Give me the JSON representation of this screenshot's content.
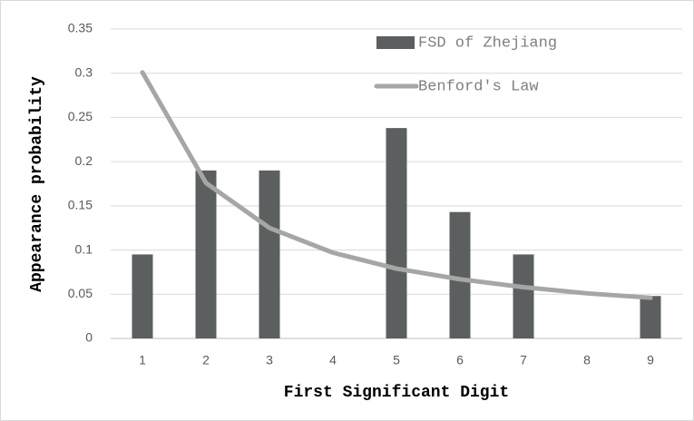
{
  "chart_data": {
    "type": "bar",
    "categories": [
      "1",
      "2",
      "3",
      "4",
      "5",
      "6",
      "7",
      "8",
      "9"
    ],
    "series": [
      {
        "name": "FSD of Zhejiang",
        "type": "bar",
        "color": "#5b5f5f",
        "values": [
          0.095,
          0.19,
          0.19,
          0,
          0.238,
          0.143,
          0.095,
          0,
          0.048
        ]
      },
      {
        "name": "Benford's Law",
        "type": "line",
        "color": "#a6a6a6",
        "values": [
          0.301,
          0.176,
          0.125,
          0.097,
          0.079,
          0.067,
          0.058,
          0.051,
          0.046
        ]
      }
    ],
    "x_label": "First Significant Digit",
    "y_label": "Appearance probability",
    "ylim": [
      0,
      0.35
    ],
    "yticks": [
      0,
      0.05,
      0.1,
      0.15,
      0.2,
      0.25,
      0.3,
      0.35
    ],
    "grid": true,
    "legend": "upper right"
  }
}
